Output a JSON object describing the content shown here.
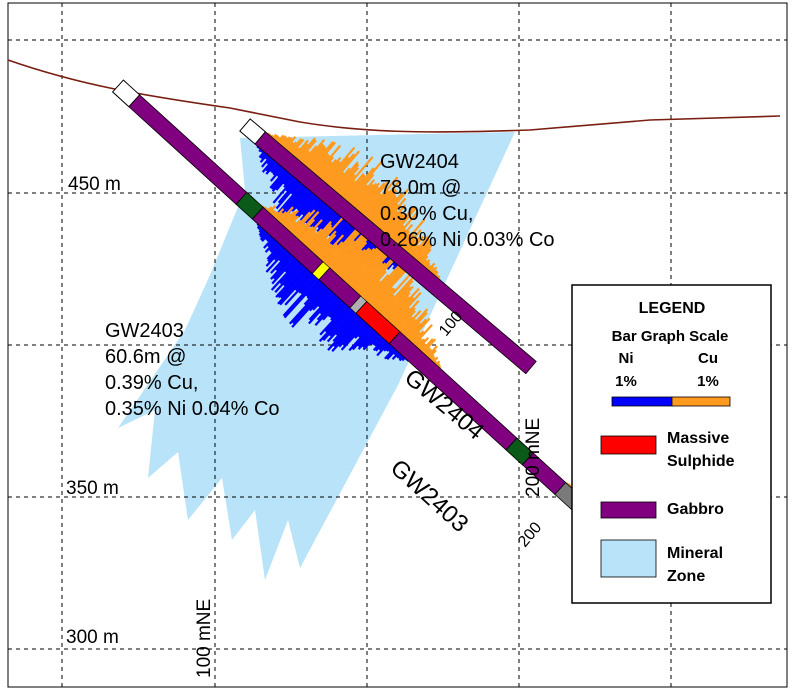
{
  "grid": {
    "elevations": [
      "450 m",
      "350 m",
      "300 m"
    ],
    "eastings": [
      "100 mNE",
      "200 mNE"
    ]
  },
  "drillholes": [
    {
      "id": "GW2403",
      "trace_label": "GW2403",
      "depth_label": "200",
      "intercept": [
        "GW2403",
        "60.6m @",
        "0.39% Cu,",
        "0.35% Ni 0.04% Co"
      ]
    },
    {
      "id": "GW2404",
      "trace_label": "GW2404",
      "depth_label": "100",
      "intercept": [
        "GW2404",
        "78.0m @",
        "0.30% Cu,",
        "0.26% Ni 0.03% Co"
      ]
    }
  ],
  "legend": {
    "title": "LEGEND",
    "bar_scale_title": "Bar Graph Scale",
    "ni_label": "Ni",
    "ni_value": "1%",
    "cu_label": "Cu",
    "cu_value": "1%",
    "items": [
      {
        "name": "massive-sulphide",
        "lines": [
          "Massive",
          "Sulphide"
        ],
        "color": "#ff0000"
      },
      {
        "name": "gabbro",
        "lines": [
          "Gabbro"
        ],
        "color": "#800080"
      },
      {
        "name": "mineral-zone",
        "lines": [
          "Mineral",
          "Zone"
        ],
        "color": "#b9e3f8"
      }
    ]
  },
  "colors": {
    "ni": "#0000ff",
    "cu": "#ff9a1e",
    "gabbro": "#800080",
    "massive_sulphide": "#ff0000",
    "green_unit": "#0c5a1a",
    "mineral_zone": "#b9e3f8",
    "surface": "#7a1e12"
  }
}
